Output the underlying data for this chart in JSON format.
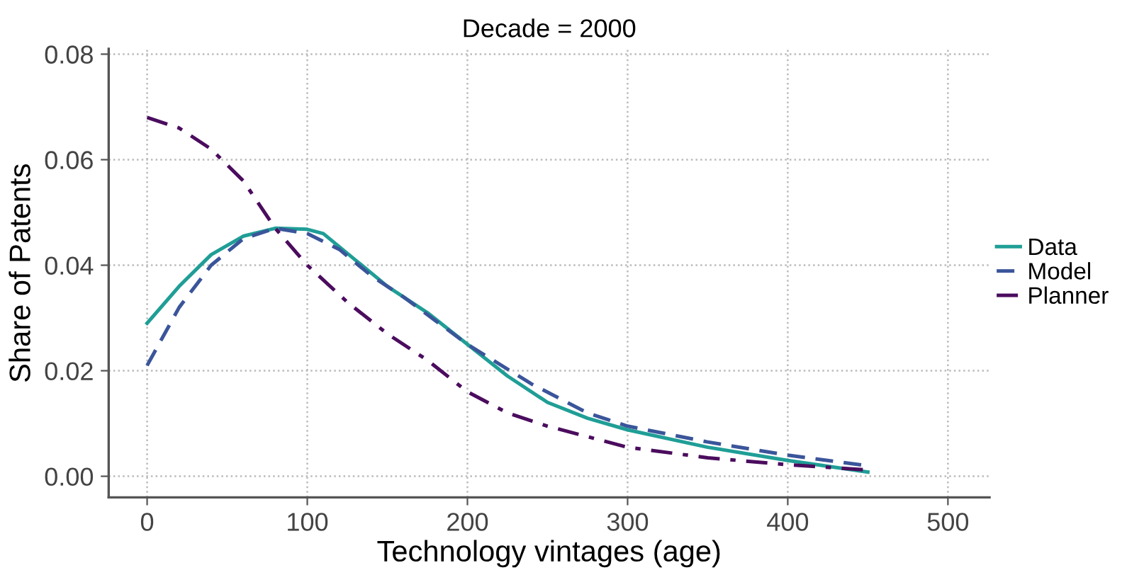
{
  "chart_data": {
    "type": "line",
    "title": "Decade = 2000",
    "xlabel": "Technology vintages (age)",
    "ylabel": "Share of Patents",
    "xlim": [
      -24,
      526
    ],
    "ylim": [
      -0.004,
      0.081
    ],
    "xticks": [
      0,
      100,
      200,
      300,
      400,
      500
    ],
    "yticks": [
      {
        "value": 0,
        "label": "0.00"
      },
      {
        "value": 0.02,
        "label": "0.02"
      },
      {
        "value": 0.04,
        "label": "0.04"
      },
      {
        "value": 0.06,
        "label": "0.06"
      },
      {
        "value": 0.08,
        "label": "0.08"
      }
    ],
    "grid": true,
    "legend": "right",
    "marker": "none",
    "series": [
      {
        "name": "Data",
        "color": "#1f9e96",
        "line_style": "solid",
        "x": [
          0,
          20,
          40,
          60,
          80,
          100,
          110,
          130,
          150,
          175,
          200,
          225,
          250,
          275,
          300,
          350,
          400,
          450
        ],
        "values": [
          0.029,
          0.036,
          0.042,
          0.0455,
          0.047,
          0.0468,
          0.046,
          0.041,
          0.036,
          0.031,
          0.025,
          0.019,
          0.014,
          0.011,
          0.0088,
          0.0055,
          0.003,
          0.0008
        ]
      },
      {
        "name": "Model",
        "color": "#3a559a",
        "line_style": "dashed",
        "x": [
          0,
          20,
          40,
          60,
          80,
          100,
          120,
          140,
          160,
          200,
          240,
          275,
          300,
          350,
          400,
          450
        ],
        "values": [
          0.021,
          0.032,
          0.04,
          0.045,
          0.047,
          0.046,
          0.043,
          0.038,
          0.034,
          0.025,
          0.0175,
          0.012,
          0.0095,
          0.0065,
          0.004,
          0.002
        ]
      },
      {
        "name": "Planner",
        "color": "#4b0c5e",
        "line_style": "dashdot",
        "x": [
          0,
          20,
          40,
          60,
          80,
          100,
          125,
          150,
          175,
          200,
          225,
          250,
          300,
          350,
          400,
          450
        ],
        "values": [
          0.068,
          0.066,
          0.062,
          0.056,
          0.047,
          0.04,
          0.033,
          0.027,
          0.022,
          0.016,
          0.012,
          0.0095,
          0.0055,
          0.0035,
          0.0022,
          0.0012
        ]
      }
    ]
  }
}
